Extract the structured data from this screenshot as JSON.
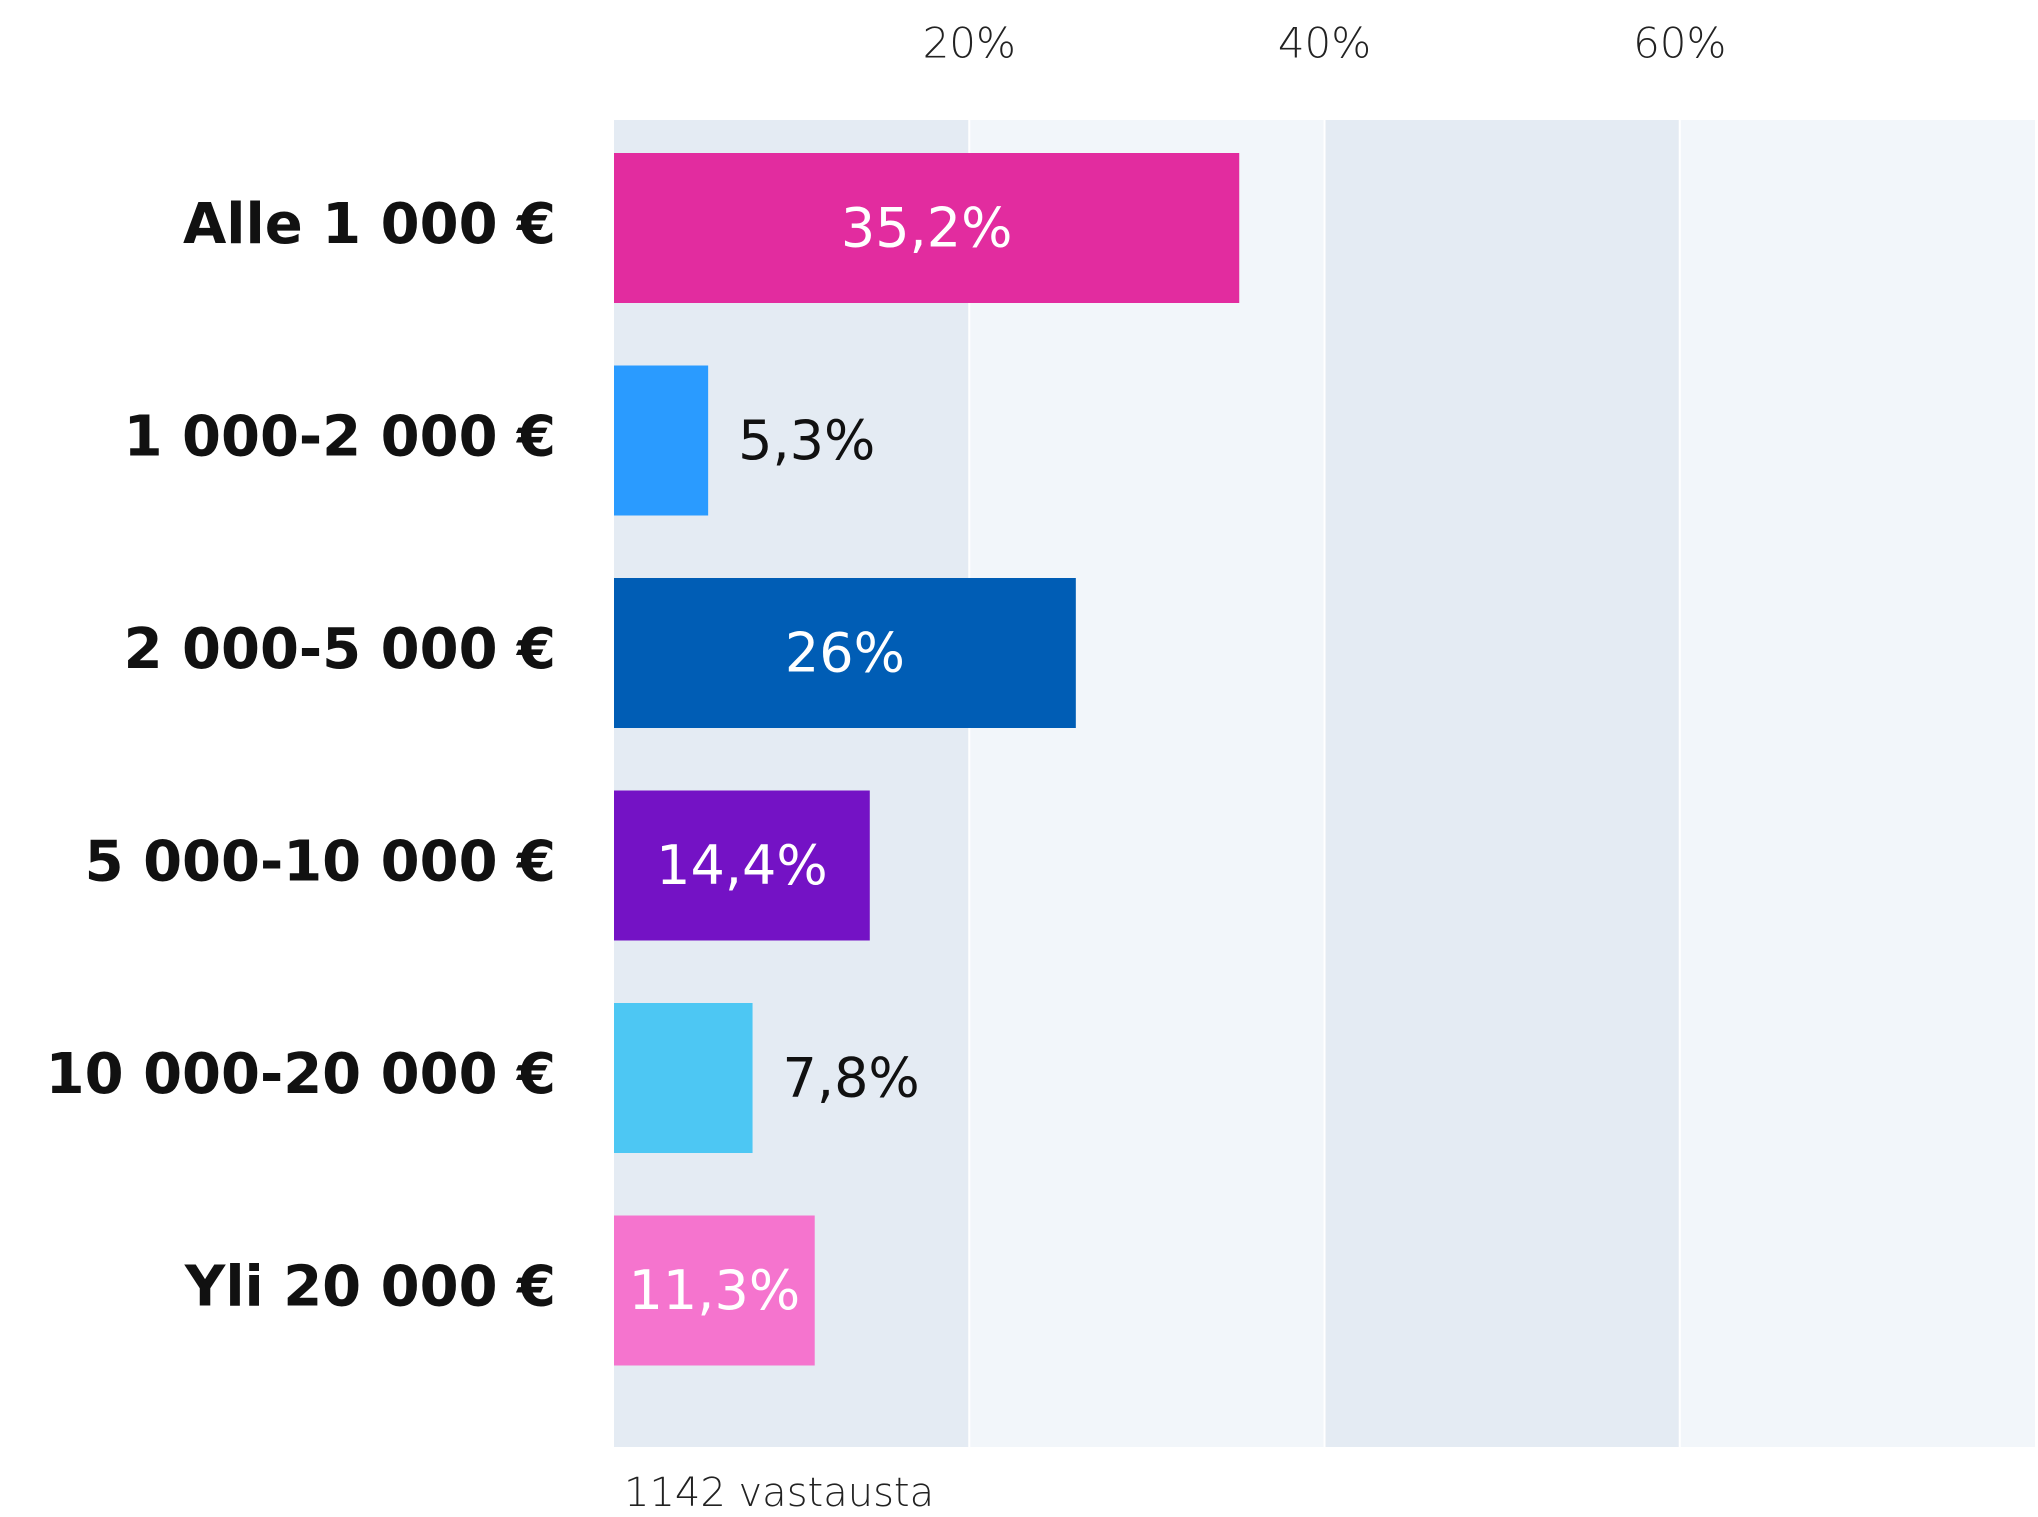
{
  "chart_data": {
    "type": "barh",
    "categories": [
      "Alle 1 000 €",
      "1 000-2 000 €",
      "2 000-5 000 €",
      "5 000-10 000 €",
      "10 000-20 000 €",
      "Yli 20 000 €"
    ],
    "values": [
      35.2,
      5.3,
      26,
      14.4,
      7.8,
      11.3
    ],
    "value_labels": [
      "35,2%",
      "5,3%",
      "26%",
      "14,4%",
      "7,8%",
      "11,3%"
    ],
    "colors": [
      "#e22c9f",
      "#2a9bff",
      "#005db5",
      "#7412c5",
      "#4dc7f3",
      "#f574ce"
    ],
    "xlim": [
      0,
      80
    ],
    "xticks": [
      {
        "value": 20,
        "label": "20%"
      },
      {
        "value": 40,
        "label": "40%"
      },
      {
        "value": 60,
        "label": "60%"
      }
    ],
    "note": "1142 vastausta"
  }
}
